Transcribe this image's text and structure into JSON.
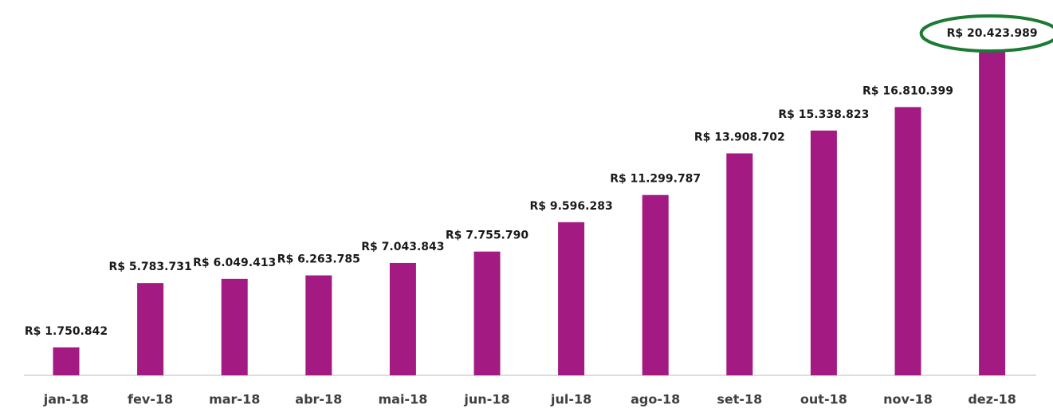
{
  "chart_data": {
    "type": "bar",
    "categories": [
      "jan-18",
      "fev-18",
      "mar-18",
      "abr-18",
      "mai-18",
      "jun-18",
      "jul-18",
      "ago-18",
      "set-18",
      "out-18",
      "nov-18",
      "dez-18"
    ],
    "values": [
      1750842,
      5783731,
      6049413,
      6263785,
      7043843,
      7755790,
      9596283,
      11299787,
      13908702,
      15338823,
      16810399,
      20423989
    ],
    "value_labels": [
      "R$ 1.750.842",
      "R$ 5.783.731",
      "R$ 6.049.413",
      "R$ 6.263.785",
      "R$ 7.043.843",
      "R$ 7.755.790",
      "R$ 9.596.283",
      "R$ 11.299.787",
      "R$ 13.908.702",
      "R$ 15.338.823",
      "R$ 16.810.399",
      "R$ 20.423.989"
    ],
    "color": "#a21a82"
  }
}
